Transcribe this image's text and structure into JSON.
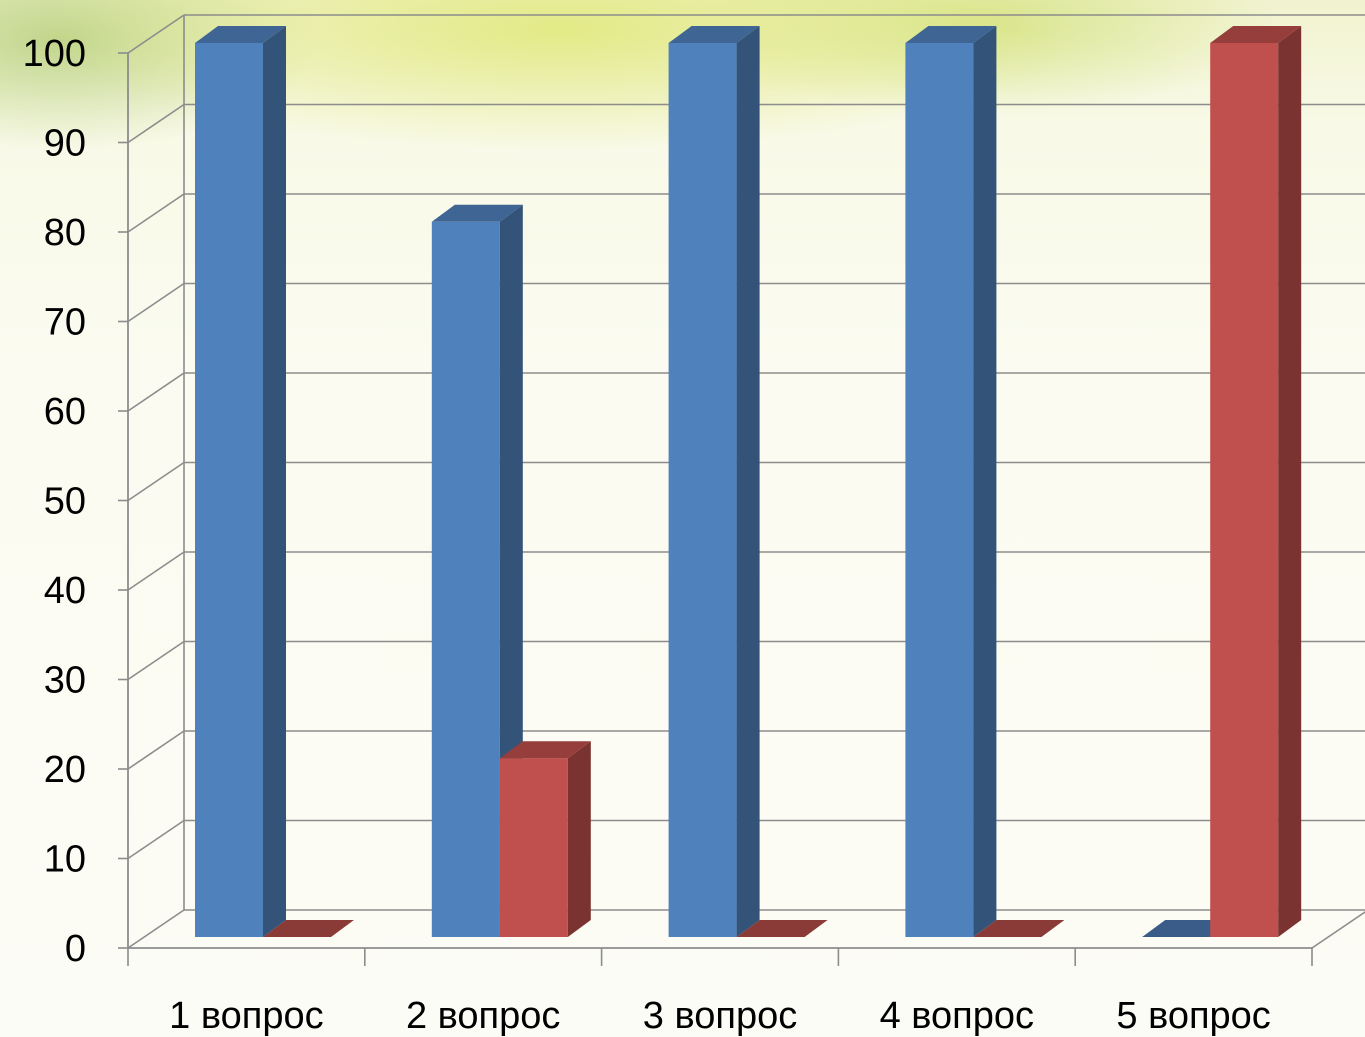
{
  "chart_data": {
    "type": "bar",
    "categories": [
      "1 вопрос",
      "2 вопрос",
      "3 вопрос",
      "4 вопрос",
      "5 вопрос"
    ],
    "series": [
      {
        "values": [
          100,
          80,
          100,
          100,
          0
        ],
        "color": "#4F81BD"
      },
      {
        "values": [
          0,
          20,
          0,
          0,
          100
        ],
        "color": "#C0504D"
      }
    ],
    "ylim": [
      0,
      100
    ],
    "y_ticks": [
      "0",
      "10",
      "20",
      "30",
      "40",
      "50",
      "60",
      "70",
      "80",
      "90",
      "100"
    ],
    "grid": true,
    "style": "3d-clustered-column"
  }
}
